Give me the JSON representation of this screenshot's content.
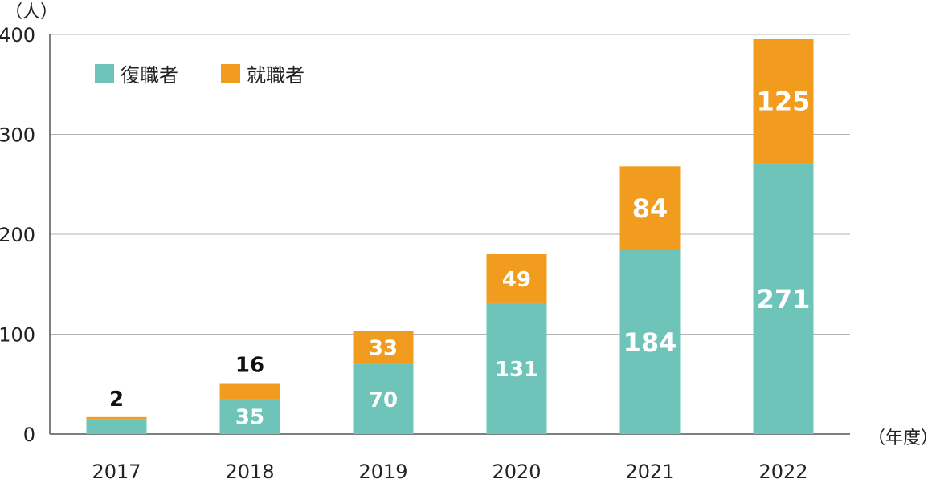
{
  "chart_data": {
    "type": "bar",
    "stacked": true,
    "categories": [
      "2017",
      "2018",
      "2019",
      "2020",
      "2021",
      "2022"
    ],
    "series": [
      {
        "name": "復職者",
        "color": "#6ec4b9",
        "values": [
          15,
          35,
          70,
          131,
          184,
          271
        ],
        "labels": [
          "",
          "35",
          "70",
          "131",
          "184",
          "271"
        ]
      },
      {
        "name": "就職者",
        "color": "#f19b1f",
        "values": [
          2,
          16,
          33,
          49,
          84,
          125
        ],
        "labels": [
          "2",
          "16",
          "33",
          "49",
          "84",
          "125"
        ]
      }
    ],
    "ylabel": "（人）",
    "xlabel": "（年度）",
    "ylim": [
      0,
      400
    ],
    "yticks": [
      "0",
      "100",
      "200",
      "300",
      "400"
    ],
    "grid": true,
    "legend_position": "top-left"
  }
}
